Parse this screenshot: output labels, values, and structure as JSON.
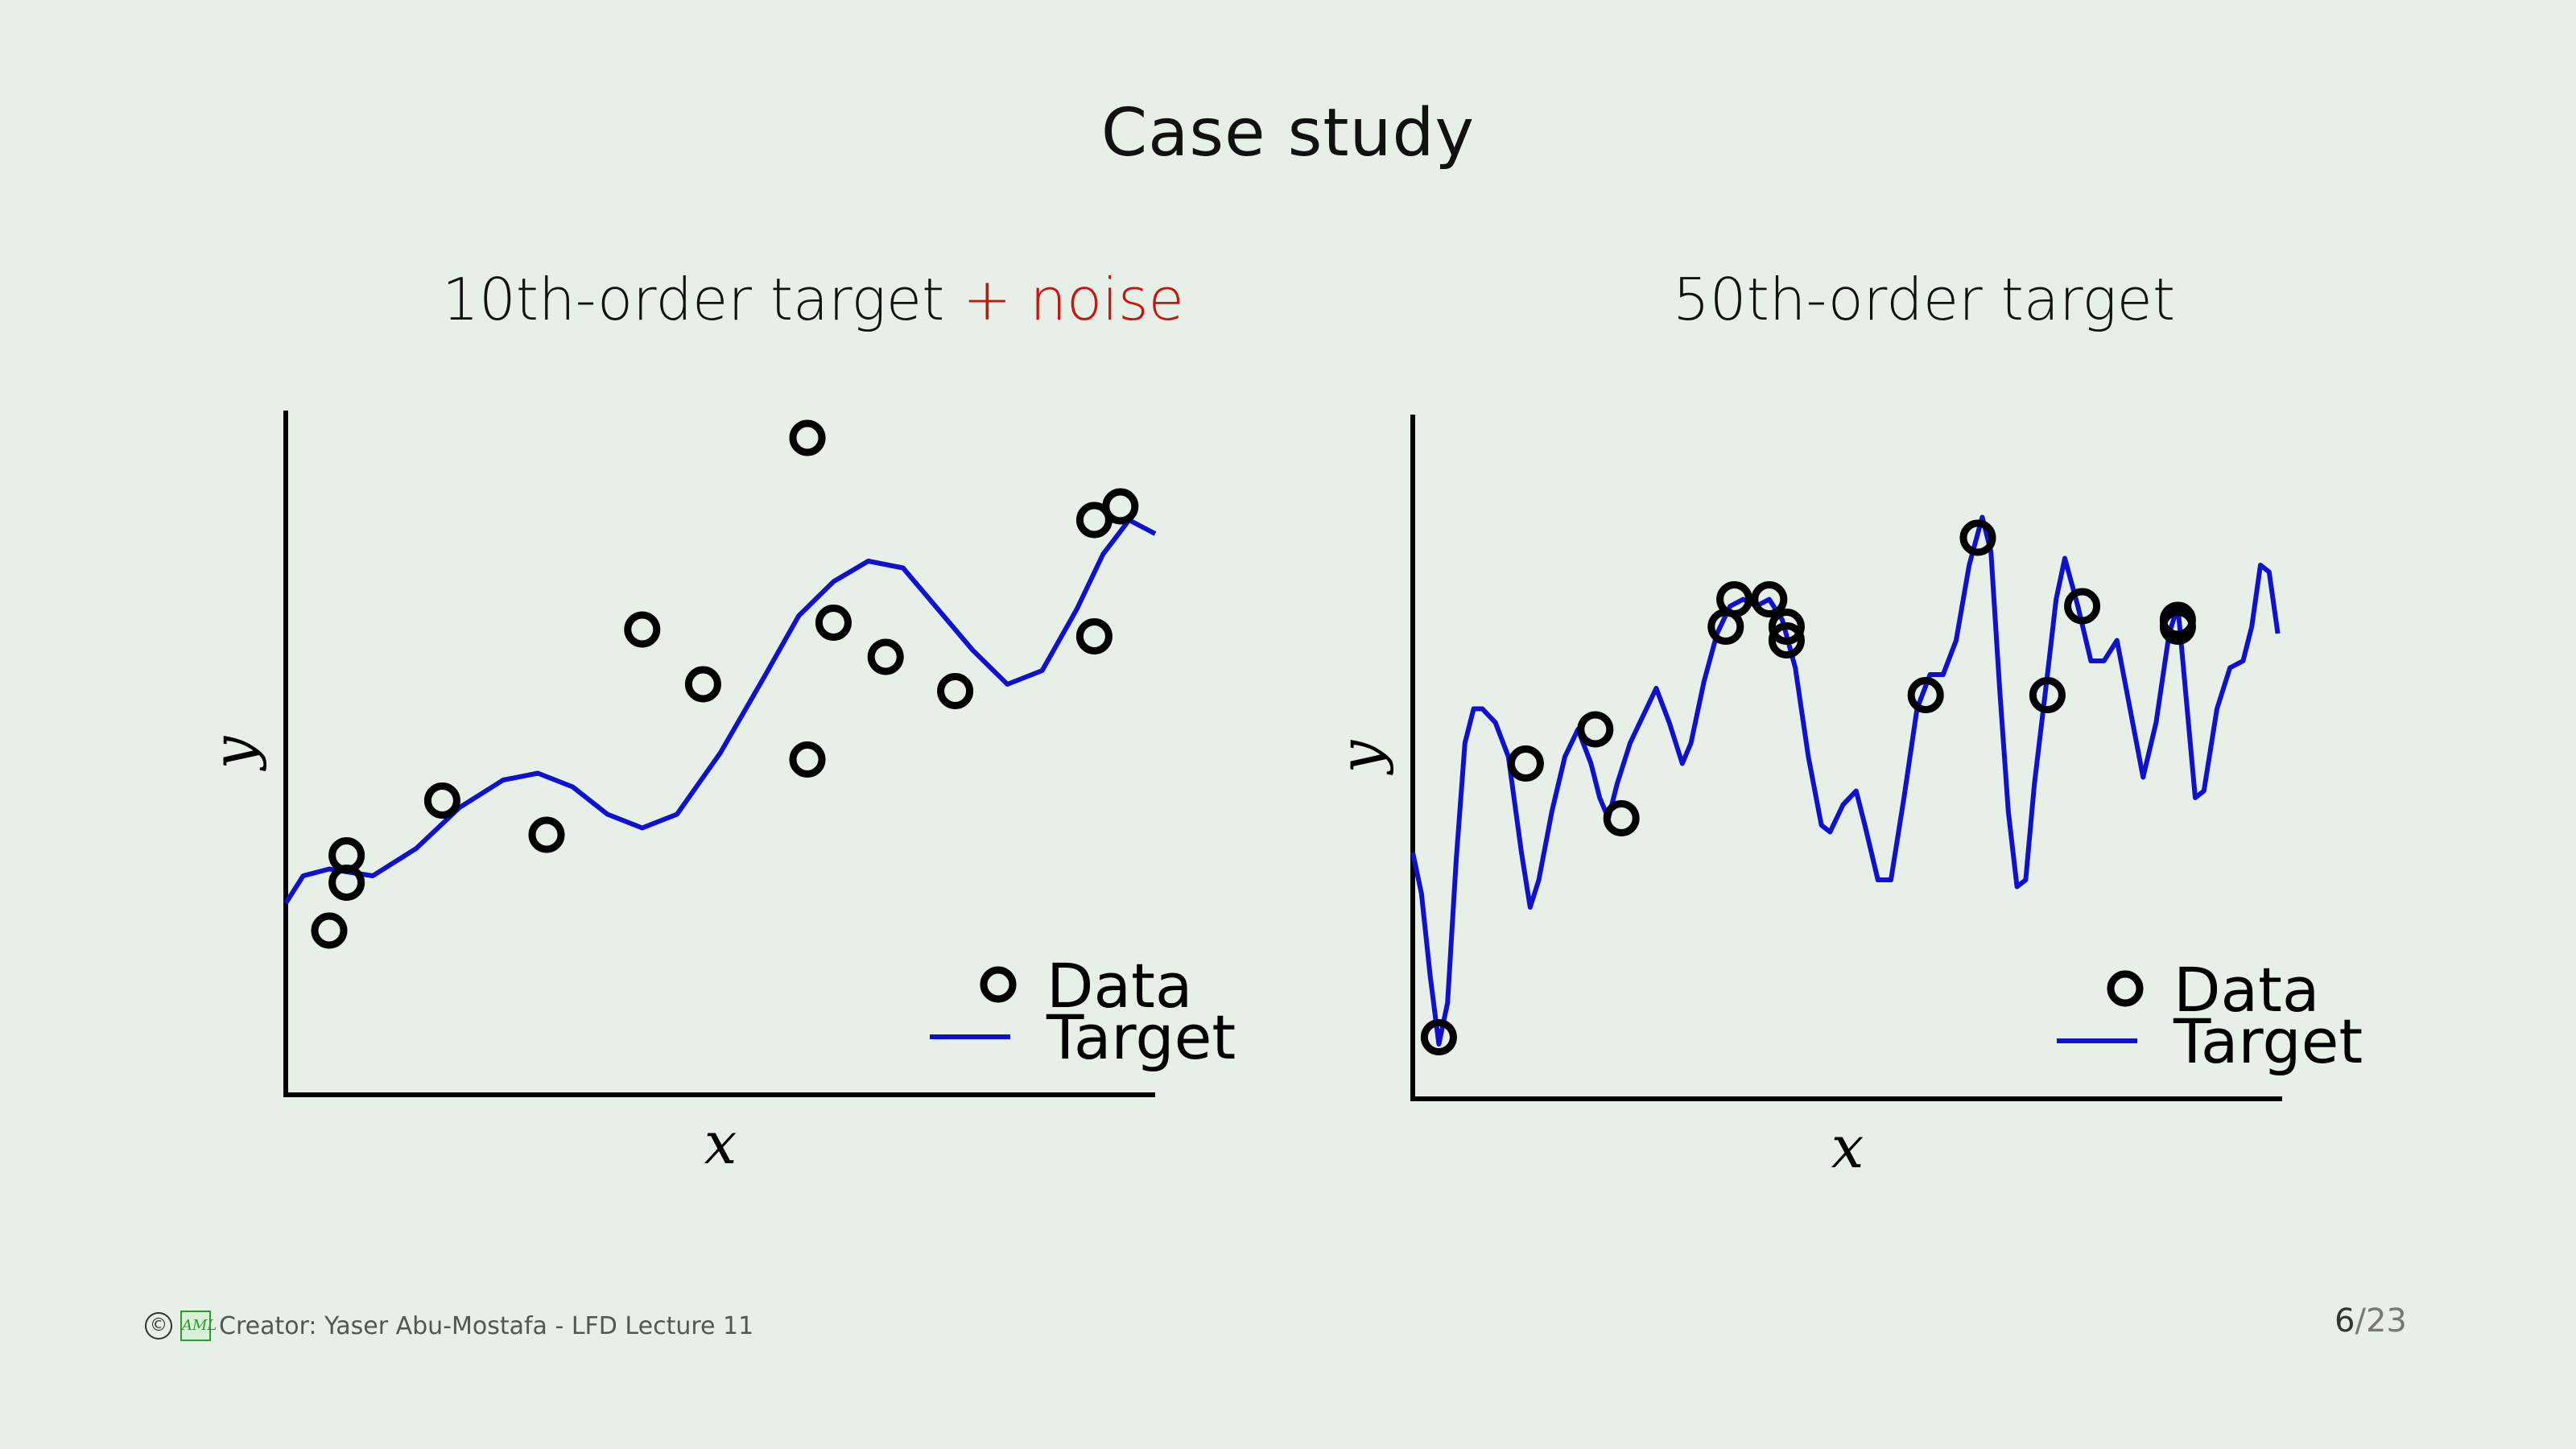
{
  "slide": {
    "title": "Case study",
    "footer_text": "Creator: Yaser Abu-Mostafa - LFD Lecture 11",
    "page_current": "6",
    "page_sep": "/",
    "page_total": "23",
    "copyright_symbol": "©",
    "logo_text": "AML"
  },
  "colors": {
    "background": "#e6f0e6",
    "target": "#1010d0",
    "data": "#000000",
    "noise": "#cc1111"
  },
  "chart_data": [
    {
      "type": "scatter",
      "title_main": "10th-order target",
      "title_plus": "+ noise",
      "xlabel": "x",
      "ylabel": "y",
      "legend_position": "bottom-right",
      "series": [
        {
          "name": "Data",
          "kind": "scatter",
          "points": [
            [
              0.05,
              0.24
            ],
            [
              0.07,
              0.35
            ],
            [
              0.07,
              0.31
            ],
            [
              0.18,
              0.43
            ],
            [
              0.3,
              0.38
            ],
            [
              0.41,
              0.68
            ],
            [
              0.48,
              0.6
            ],
            [
              0.6,
              0.49
            ],
            [
              0.6,
              0.96
            ],
            [
              0.63,
              0.69
            ],
            [
              0.69,
              0.64
            ],
            [
              0.77,
              0.59
            ],
            [
              0.93,
              0.84
            ],
            [
              0.93,
              0.67
            ],
            [
              0.96,
              0.86
            ]
          ]
        },
        {
          "name": "Target",
          "kind": "line",
          "points": [
            [
              0.0,
              0.28
            ],
            [
              0.02,
              0.32
            ],
            [
              0.05,
              0.33
            ],
            [
              0.1,
              0.32
            ],
            [
              0.15,
              0.36
            ],
            [
              0.2,
              0.42
            ],
            [
              0.25,
              0.46
            ],
            [
              0.29,
              0.47
            ],
            [
              0.33,
              0.45
            ],
            [
              0.37,
              0.41
            ],
            [
              0.41,
              0.39
            ],
            [
              0.45,
              0.41
            ],
            [
              0.5,
              0.5
            ],
            [
              0.55,
              0.61
            ],
            [
              0.59,
              0.7
            ],
            [
              0.63,
              0.75
            ],
            [
              0.67,
              0.78
            ],
            [
              0.71,
              0.77
            ],
            [
              0.75,
              0.71
            ],
            [
              0.79,
              0.65
            ],
            [
              0.83,
              0.6
            ],
            [
              0.87,
              0.62
            ],
            [
              0.91,
              0.71
            ],
            [
              0.94,
              0.79
            ],
            [
              0.97,
              0.84
            ],
            [
              1.0,
              0.82
            ]
          ]
        }
      ]
    },
    {
      "type": "scatter",
      "title_main": "50th-order target",
      "xlabel": "x",
      "ylabel": "y",
      "legend_position": "bottom-right",
      "series": [
        {
          "name": "Data",
          "kind": "scatter",
          "points": [
            [
              0.03,
              0.09
            ],
            [
              0.13,
              0.49
            ],
            [
              0.21,
              0.54
            ],
            [
              0.24,
              0.41
            ],
            [
              0.36,
              0.69
            ],
            [
              0.37,
              0.73
            ],
            [
              0.41,
              0.73
            ],
            [
              0.43,
              0.69
            ],
            [
              0.43,
              0.67
            ],
            [
              0.59,
              0.59
            ],
            [
              0.65,
              0.82
            ],
            [
              0.73,
              0.59
            ],
            [
              0.77,
              0.72
            ],
            [
              0.88,
              0.7
            ],
            [
              0.88,
              0.69
            ]
          ]
        },
        {
          "name": "Target",
          "kind": "line",
          "points": [
            [
              0.0,
              0.36
            ],
            [
              0.01,
              0.3
            ],
            [
              0.02,
              0.18
            ],
            [
              0.03,
              0.08
            ],
            [
              0.04,
              0.14
            ],
            [
              0.05,
              0.35
            ],
            [
              0.06,
              0.52
            ],
            [
              0.07,
              0.57
            ],
            [
              0.08,
              0.57
            ],
            [
              0.095,
              0.55
            ],
            [
              0.11,
              0.5
            ],
            [
              0.125,
              0.36
            ],
            [
              0.135,
              0.28
            ],
            [
              0.145,
              0.32
            ],
            [
              0.16,
              0.42
            ],
            [
              0.175,
              0.5
            ],
            [
              0.19,
              0.54
            ],
            [
              0.205,
              0.49
            ],
            [
              0.215,
              0.44
            ],
            [
              0.225,
              0.41
            ],
            [
              0.235,
              0.46
            ],
            [
              0.25,
              0.52
            ],
            [
              0.265,
              0.56
            ],
            [
              0.28,
              0.6
            ],
            [
              0.295,
              0.55
            ],
            [
              0.31,
              0.49
            ],
            [
              0.32,
              0.52
            ],
            [
              0.335,
              0.61
            ],
            [
              0.35,
              0.68
            ],
            [
              0.365,
              0.72
            ],
            [
              0.38,
              0.73
            ],
            [
              0.395,
              0.72
            ],
            [
              0.41,
              0.73
            ],
            [
              0.425,
              0.7
            ],
            [
              0.44,
              0.63
            ],
            [
              0.455,
              0.5
            ],
            [
              0.47,
              0.4
            ],
            [
              0.48,
              0.39
            ],
            [
              0.495,
              0.43
            ],
            [
              0.51,
              0.45
            ],
            [
              0.52,
              0.4
            ],
            [
              0.535,
              0.32
            ],
            [
              0.55,
              0.32
            ],
            [
              0.565,
              0.44
            ],
            [
              0.58,
              0.57
            ],
            [
              0.595,
              0.62
            ],
            [
              0.61,
              0.62
            ],
            [
              0.625,
              0.67
            ],
            [
              0.64,
              0.78
            ],
            [
              0.655,
              0.85
            ],
            [
              0.665,
              0.8
            ],
            [
              0.675,
              0.6
            ],
            [
              0.685,
              0.42
            ],
            [
              0.695,
              0.31
            ],
            [
              0.705,
              0.32
            ],
            [
              0.715,
              0.46
            ],
            [
              0.73,
              0.62
            ],
            [
              0.74,
              0.73
            ],
            [
              0.75,
              0.79
            ],
            [
              0.765,
              0.72
            ],
            [
              0.78,
              0.64
            ],
            [
              0.795,
              0.64
            ],
            [
              0.81,
              0.67
            ],
            [
              0.825,
              0.57
            ],
            [
              0.84,
              0.47
            ],
            [
              0.855,
              0.55
            ],
            [
              0.87,
              0.68
            ],
            [
              0.88,
              0.72
            ],
            [
              0.89,
              0.58
            ],
            [
              0.9,
              0.44
            ],
            [
              0.91,
              0.45
            ],
            [
              0.925,
              0.57
            ],
            [
              0.94,
              0.63
            ],
            [
              0.955,
              0.64
            ],
            [
              0.965,
              0.69
            ],
            [
              0.975,
              0.78
            ],
            [
              0.985,
              0.77
            ],
            [
              0.995,
              0.68
            ]
          ]
        }
      ]
    }
  ]
}
